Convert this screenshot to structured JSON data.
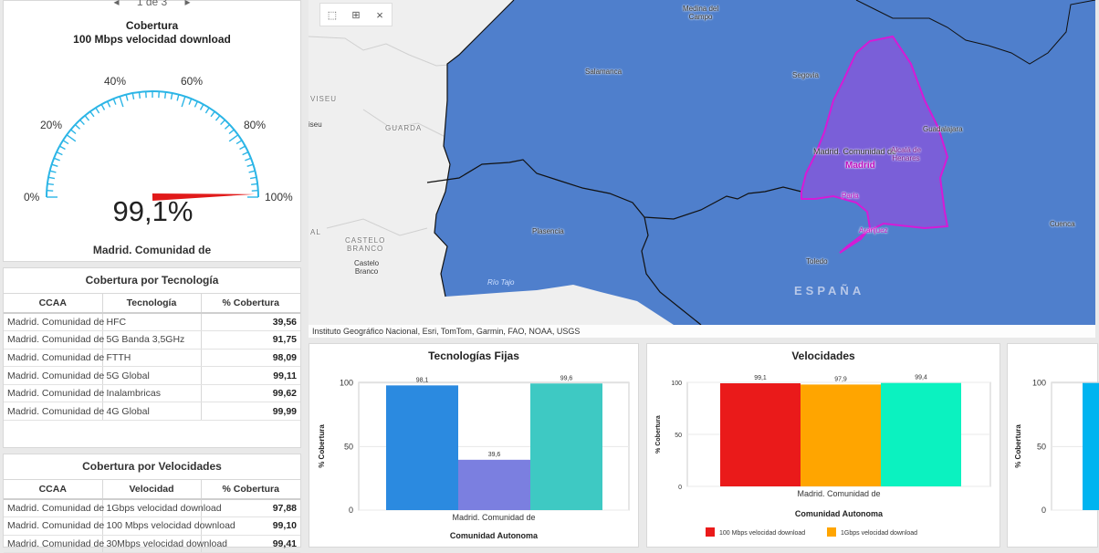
{
  "gauge": {
    "pager": "1 de 3",
    "title_line1": "Cobertura",
    "title_line2": "100 Mbps velocidad download",
    "value": 99.1,
    "value_text": "99,1%",
    "label": "Madrid. Comunidad de",
    "ticks": [
      "0%",
      "20%",
      "40%",
      "60%",
      "80%",
      "100%"
    ],
    "colors": {
      "arc": "#2bb5e6",
      "needle": "#e11a1a"
    }
  },
  "tech_table": {
    "title": "Cobertura por Tecnología",
    "headers": [
      "CCAA",
      "Tecnología",
      "% Cobertura"
    ],
    "rows": [
      [
        "Madrid. Comunidad de",
        "HFC",
        "39,56"
      ],
      [
        "Madrid. Comunidad de",
        "5G Banda 3,5GHz",
        "91,75"
      ],
      [
        "Madrid. Comunidad de",
        "FTTH",
        "98,09"
      ],
      [
        "Madrid. Comunidad de",
        "5G Global",
        "99,11"
      ],
      [
        "Madrid. Comunidad de",
        "Inalambricas",
        "99,62"
      ],
      [
        "Madrid. Comunidad de",
        "4G Global",
        "99,99"
      ]
    ]
  },
  "speed_table": {
    "title": "Cobertura por Velocidades",
    "headers": [
      "CCAA",
      "Velocidad",
      "% Cobertura"
    ],
    "rows": [
      [
        "Madrid. Comunidad de",
        "1Gbps velocidad download",
        "97,88"
      ],
      [
        "Madrid. Comunidad de",
        "100 Mbps velocidad download",
        "99,10"
      ],
      [
        "Madrid. Comunidad de",
        "30Mbps velocidad download",
        "99,41"
      ]
    ]
  },
  "map": {
    "toolbar": {
      "select_icon": "rect-select-icon",
      "select2_icon": "lasso-select-icon",
      "clear_icon": "close-icon",
      "clear_glyph": "×"
    },
    "places": {
      "medina1": "Medina del",
      "medina2": "Campo",
      "salamanca": "Salamanca",
      "segovia": "Segovia",
      "guadalajara": "Guadalajara",
      "madrid_ca": "Madrid. Comunidad de",
      "madrid": "Madrid",
      "alcala1": "Alcalá de",
      "alcala2": "Henares",
      "parla": "Parla",
      "aranjuez": "Aranjuez",
      "toledo": "Toledo",
      "cuenca": "Cuenca",
      "plasencia": "Plasencia",
      "viseu": "VISEU",
      "guarda": "GUARDA",
      "seu": "iseu",
      "castelo1": "CASTELO",
      "castelo2": "BRANCO",
      "castelo_city1": "Castelo",
      "castelo_city2": "Branco",
      "al": "AL",
      "tajo": "Río Tajo",
      "espana": "ESPAÑA"
    },
    "attribution": "Instituto Geográfico Nacional, Esri, TomTom, Garmin, FAO, NOAA, USGS",
    "colors": {
      "region": "#4f7fcc",
      "madrid_fill": "#7a5fd8",
      "madrid_border": "#d61ad6",
      "land": "#efefef"
    }
  },
  "chart_data": [
    {
      "type": "bar",
      "title": "Tecnologías Fijas",
      "xlabel": "Comunidad Autonoma",
      "ylabel": "% Cobertura",
      "categories": [
        "Madrid. Comunidad de"
      ],
      "series": [
        {
          "values": [
            98.1
          ],
          "label": "98,1",
          "color": "#2b8ae0"
        },
        {
          "values": [
            39.6
          ],
          "label": "39,6",
          "color": "#7b7fe0"
        },
        {
          "values": [
            99.6
          ],
          "label": "99,6",
          "color": "#3ec9c3"
        }
      ],
      "yticks": [
        "0",
        "50",
        "100"
      ],
      "ylim": [
        0,
        100
      ]
    },
    {
      "type": "bar",
      "title": "Velocidades",
      "xlabel": "Comunidad Autonoma",
      "ylabel": "% Cobertura",
      "categories": [
        "Madrid. Comunidad de"
      ],
      "series": [
        {
          "name": "100 Mbps velocidad download",
          "values": [
            99.1
          ],
          "label": "99,1",
          "color": "#ea1a1a"
        },
        {
          "name": "1Gbps velocidad download",
          "values": [
            97.9
          ],
          "label": "97,9",
          "color": "#ffa500"
        },
        {
          "values": [
            99.4
          ],
          "label": "99,4",
          "color": "#0bf2c0"
        }
      ],
      "yticks": [
        "0",
        "50",
        "100"
      ],
      "ylim": [
        0,
        100
      ],
      "legend": "bottom"
    },
    {
      "type": "bar",
      "ylabel": "% Cobertura",
      "yticks": [
        "0",
        "50",
        "100"
      ],
      "ylim": [
        0,
        100
      ],
      "series": [
        {
          "values": [
            100
          ],
          "color": "#00b4f0"
        }
      ]
    }
  ]
}
